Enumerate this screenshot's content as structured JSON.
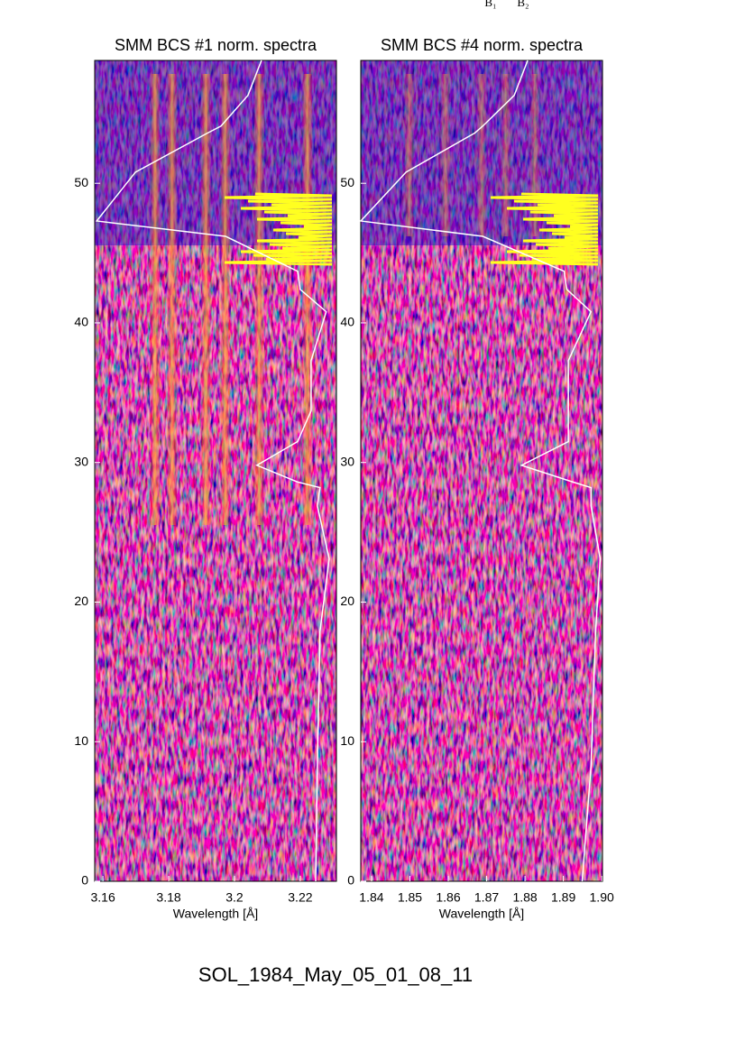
{
  "header_labels": [
    "B₁",
    "B₂"
  ],
  "chart_data": [
    {
      "type": "line",
      "title": "SMM BCS #1 norm. spectra",
      "x_label": "Wavelength [Å]",
      "xlim": [
        3.1575,
        3.231
      ],
      "xticks": [
        3.16,
        3.18,
        3.2,
        3.22
      ],
      "ylim": [
        0,
        58.8
      ],
      "yticks": [
        0,
        10,
        20,
        30,
        40,
        50
      ],
      "series": [
        {
          "color": "#ffffff",
          "x": [
            3.2247,
            3.2252,
            3.226,
            3.2288,
            3.2252,
            3.226,
            3.2192,
            3.2068,
            3.2192,
            3.2233,
            3.2233,
            3.2279,
            3.22,
            3.2192,
            3.1973,
            3.1581,
            3.1699,
            3.1918,
            3.1959,
            3.2041,
            3.2082
          ],
          "values": [
            0,
            8.2,
            17.9,
            23.1,
            26.9,
            28.2,
            28.6,
            29.8,
            31.5,
            33.7,
            37.3,
            40.8,
            42.4,
            43.7,
            46.2,
            47.3,
            50.8,
            53.6,
            54.1,
            56.3,
            58.8
          ]
        }
      ]
    },
    {
      "type": "line",
      "title": "SMM BCS #4 norm. spectra",
      "x_label": "Wavelength [Å]",
      "xlim": [
        1.8372,
        1.9002
      ],
      "xticks": [
        1.84,
        1.85,
        1.86,
        1.87,
        1.88,
        1.89,
        {
          "value": 1.9,
          "label": "1.90"
        }
      ],
      "ylim": [
        0,
        58.8
      ],
      "yticks": [
        0,
        10,
        20,
        30,
        40,
        50
      ],
      "series": [
        {
          "color": "#ffffff",
          "x": [
            1.8949,
            1.8972,
            1.8984,
            1.8996,
            1.8972,
            1.8972,
            1.8925,
            1.8791,
            1.8913,
            1.8913,
            1.8913,
            1.8972,
            1.8909,
            1.8902,
            1.869,
            1.8372,
            1.849,
            1.8669,
            1.869,
            1.8772,
            1.8807
          ],
          "values": [
            0,
            8.2,
            17.9,
            23.1,
            26.9,
            28.2,
            28.6,
            29.8,
            31.5,
            33.7,
            37.3,
            40.8,
            42.4,
            43.7,
            46.2,
            47.3,
            50.8,
            53.6,
            54.1,
            56.3,
            58.8
          ]
        }
      ]
    }
  ],
  "footer": "SOL_1984_May_05_01_08_11"
}
